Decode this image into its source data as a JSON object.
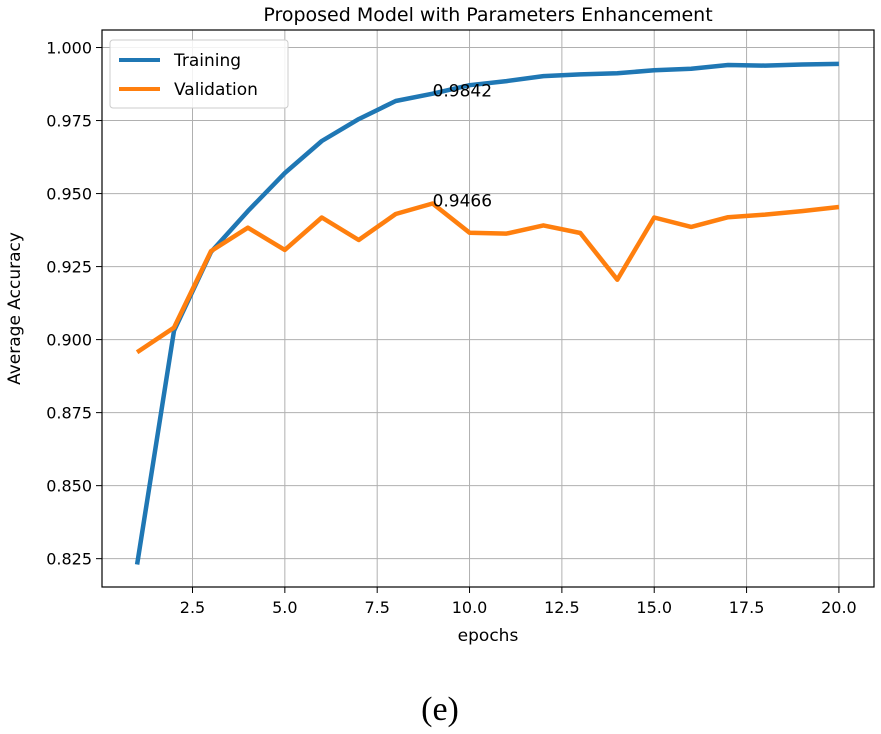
{
  "chart_data": {
    "type": "line",
    "title": "Proposed Model with Parameters Enhancement",
    "xlabel": "epochs",
    "ylabel": "Average Accuracy",
    "xlim": [
      0.05,
      20.95
    ],
    "ylim": [
      0.8153,
      1.006
    ],
    "xticks": [
      2.5,
      5.0,
      7.5,
      10.0,
      12.5,
      15.0,
      17.5,
      20.0
    ],
    "xtick_labels": [
      "2.5",
      "5.0",
      "7.5",
      "10.0",
      "12.5",
      "15.0",
      "17.5",
      "20.0"
    ],
    "yticks": [
      0.825,
      0.85,
      0.875,
      0.9,
      0.925,
      0.95,
      0.975,
      1.0
    ],
    "ytick_labels": [
      "0.825",
      "0.850",
      "0.875",
      "0.900",
      "0.925",
      "0.950",
      "0.975",
      "1.000"
    ],
    "grid": true,
    "legend_position": "top-left",
    "x": [
      1,
      2,
      3,
      4,
      5,
      6,
      7,
      8,
      9,
      10,
      11,
      12,
      13,
      14,
      15,
      16,
      17,
      18,
      19,
      20
    ],
    "series": [
      {
        "name": "Training",
        "color": "#1f77b4",
        "values": [
          0.823,
          0.903,
          0.93,
          0.944,
          0.957,
          0.968,
          0.9755,
          0.9817,
          0.9842,
          0.9871,
          0.9885,
          0.9902,
          0.9908,
          0.9912,
          0.9922,
          0.9927,
          0.994,
          0.9938,
          0.9942,
          0.9944
        ]
      },
      {
        "name": "Validation",
        "color": "#ff7f0e",
        "values": [
          0.8957,
          0.9041,
          0.9303,
          0.9383,
          0.9307,
          0.9418,
          0.9341,
          0.943,
          0.9466,
          0.9366,
          0.9363,
          0.9391,
          0.9365,
          0.9205,
          0.9418,
          0.9386,
          0.9419,
          0.9428,
          0.944,
          0.9454
        ]
      }
    ],
    "annotations": [
      {
        "text": "0.9842",
        "x": 9,
        "y": 0.9842
      },
      {
        "text": "0.9466",
        "x": 9,
        "y": 0.9466
      }
    ]
  },
  "caption": "(e)"
}
